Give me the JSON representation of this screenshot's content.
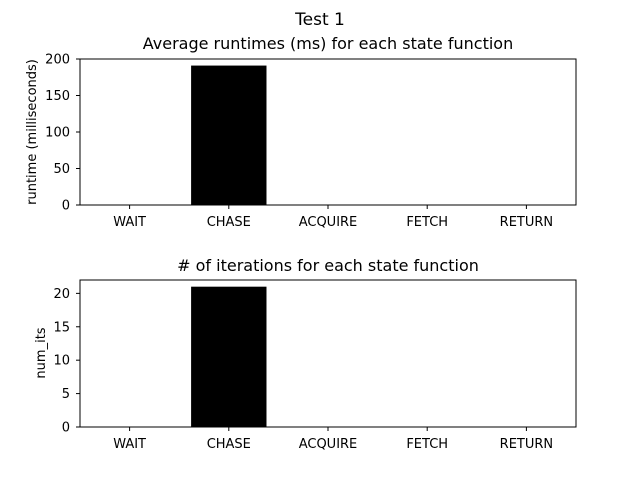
{
  "figure": {
    "suptitle": "Test 1"
  },
  "chart_data": [
    {
      "type": "bar",
      "title": "Average runtimes (ms) for each state function",
      "xlabel": "",
      "ylabel": "runtime (milliseconds)",
      "categories": [
        "WAIT",
        "CHASE",
        "ACQUIRE",
        "FETCH",
        "RETURN"
      ],
      "values": [
        0,
        191,
        0,
        0,
        0
      ],
      "ylim": [
        0,
        200
      ],
      "yticks": [
        0,
        50,
        100,
        150,
        200
      ],
      "bar_color": "#000000",
      "grid": false
    },
    {
      "type": "bar",
      "title": "# of iterations for each state function",
      "xlabel": "",
      "ylabel": "num_its",
      "categories": [
        "WAIT",
        "CHASE",
        "ACQUIRE",
        "FETCH",
        "RETURN"
      ],
      "values": [
        0,
        21,
        0,
        0,
        0
      ],
      "ylim": [
        0,
        22
      ],
      "yticks": [
        0,
        5,
        10,
        15,
        20
      ],
      "bar_color": "#000000",
      "grid": false
    }
  ]
}
